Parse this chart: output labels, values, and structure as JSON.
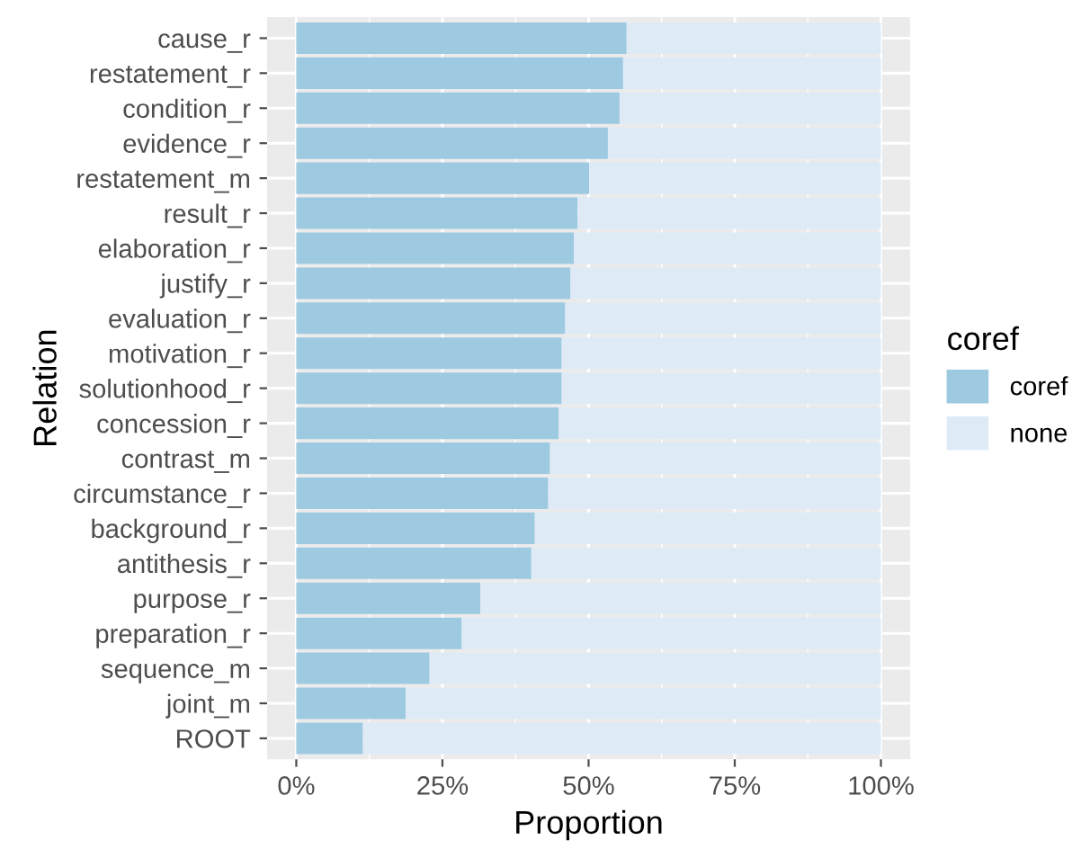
{
  "chart_data": {
    "type": "bar",
    "orientation": "horizontal",
    "stacked": true,
    "xlabel": "Proportion",
    "ylabel": "Relation",
    "legend_title": "coref",
    "legend": "right",
    "grid": true,
    "categories": [
      "cause_r",
      "restatement_r",
      "condition_r",
      "evidence_r",
      "restatement_m",
      "result_r",
      "elaboration_r",
      "justify_r",
      "evaluation_r",
      "motivation_r",
      "solutionhood_r",
      "concession_r",
      "contrast_m",
      "circumstance_r",
      "background_r",
      "antithesis_r",
      "purpose_r",
      "preparation_r",
      "sequence_m",
      "joint_m",
      "ROOT"
    ],
    "series": [
      {
        "name": "coref",
        "color": "#9ecae1",
        "values": [
          56.5,
          55.9,
          55.3,
          53.3,
          50.1,
          48.1,
          47.5,
          46.9,
          46.0,
          45.4,
          45.4,
          44.9,
          43.4,
          43.1,
          40.8,
          40.2,
          31.5,
          28.3,
          22.8,
          18.7,
          11.4
        ]
      },
      {
        "name": "none",
        "color": "#deebf7",
        "values": [
          43.5,
          44.1,
          44.7,
          46.7,
          49.9,
          51.9,
          52.5,
          53.1,
          54.0,
          54.6,
          54.6,
          55.1,
          56.6,
          56.9,
          59.2,
          59.8,
          68.5,
          71.7,
          77.2,
          81.3,
          88.6
        ]
      }
    ],
    "xlim": [
      -5,
      105
    ],
    "xticks": [
      {
        "value": 0,
        "label": "0%"
      },
      {
        "value": 25,
        "label": "25%"
      },
      {
        "value": 50,
        "label": "50%"
      },
      {
        "value": 75,
        "label": "75%"
      },
      {
        "value": 100,
        "label": "100%"
      }
    ]
  }
}
